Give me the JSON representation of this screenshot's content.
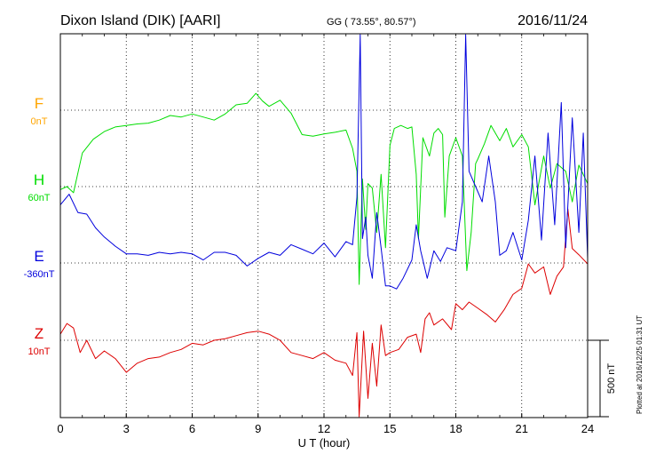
{
  "header": {
    "station": "Dixon Island (DIK)  [AARI]",
    "coords": "GG ( 73.55°,  80.57°)",
    "date": "2016/11/24"
  },
  "footer": {
    "plotted": "Plotted at 2016/12/25 01:31  UT"
  },
  "chart_data": {
    "type": "line",
    "xlabel": "U T (hour)",
    "xlim": [
      0,
      24
    ],
    "x_ticks": [
      "0",
      "3",
      "6",
      "9",
      "12",
      "15",
      "18",
      "21",
      "24"
    ],
    "scale_bar": "500 nT",
    "grid": true,
    "series": [
      {
        "name": "F",
        "baseline": "0nT",
        "color": "#ffa500",
        "x": [],
        "values": []
      },
      {
        "name": "H",
        "baseline": "60nT",
        "color": "#00dd00",
        "x": [
          0,
          0.3,
          0.6,
          1.0,
          1.5,
          2.0,
          2.5,
          3.0,
          3.5,
          4.0,
          4.5,
          5.0,
          5.5,
          6.0,
          6.5,
          7.0,
          7.5,
          8.0,
          8.5,
          8.9,
          9.2,
          9.5,
          10.0,
          10.5,
          11.0,
          11.5,
          12.0,
          12.5,
          13.0,
          13.3,
          13.5,
          13.6,
          13.75,
          13.9,
          14.0,
          14.2,
          14.4,
          14.6,
          14.8,
          15.0,
          15.2,
          15.5,
          15.8,
          16.0,
          16.2,
          16.3,
          16.5,
          16.8,
          17.0,
          17.2,
          17.4,
          17.5,
          17.7,
          18.0,
          18.3,
          18.5,
          18.7,
          18.9,
          19.0,
          19.3,
          19.6,
          20.0,
          20.3,
          20.6,
          21.0,
          21.3,
          21.6,
          22.0,
          22.3,
          22.6,
          23.0,
          23.3,
          23.6,
          24.0
        ],
        "values": [
          -20,
          0,
          -40,
          220,
          310,
          360,
          390,
          400,
          410,
          415,
          435,
          465,
          455,
          475,
          455,
          435,
          475,
          535,
          545,
          610,
          560,
          525,
          565,
          480,
          340,
          330,
          345,
          355,
          370,
          250,
          100,
          -640,
          50,
          -280,
          20,
          -10,
          -300,
          80,
          -400,
          270,
          380,
          400,
          380,
          390,
          80,
          -340,
          320,
          200,
          350,
          380,
          340,
          -200,
          200,
          320,
          200,
          -550,
          -300,
          150,
          180,
          280,
          400,
          300,
          380,
          260,
          340,
          260,
          -120,
          200,
          -10,
          150,
          100,
          -100,
          140,
          20
        ]
      },
      {
        "name": "E",
        "baseline": "-360nT",
        "color": "#0000dd",
        "x": [
          0,
          0.4,
          0.8,
          1.2,
          1.6,
          2.0,
          2.5,
          3.0,
          3.5,
          4.0,
          4.5,
          5.0,
          5.5,
          6.0,
          6.5,
          7.0,
          7.5,
          8.0,
          8.5,
          9.0,
          9.5,
          10.0,
          10.5,
          11.0,
          11.5,
          12.0,
          12.5,
          13.0,
          13.3,
          13.5,
          13.65,
          13.75,
          13.9,
          14.0,
          14.2,
          14.4,
          14.6,
          14.8,
          15.0,
          15.3,
          15.6,
          16.0,
          16.2,
          16.4,
          16.7,
          17.0,
          17.3,
          17.6,
          18.0,
          18.3,
          18.45,
          18.6,
          18.9,
          19.2,
          19.5,
          19.8,
          20.0,
          20.3,
          20.6,
          21.0,
          21.3,
          21.6,
          21.9,
          22.2,
          22.5,
          22.8,
          23.0,
          23.3,
          23.6,
          23.8,
          24.0
        ],
        "values": [
          380,
          450,
          330,
          320,
          230,
          170,
          110,
          60,
          60,
          50,
          70,
          60,
          70,
          60,
          20,
          70,
          70,
          50,
          -20,
          30,
          70,
          50,
          120,
          90,
          60,
          130,
          40,
          140,
          120,
          430,
          1600,
          160,
          300,
          50,
          -100,
          330,
          100,
          -150,
          -150,
          -170,
          -100,
          20,
          250,
          80,
          -100,
          80,
          10,
          100,
          80,
          400,
          1550,
          600,
          500,
          400,
          700,
          400,
          50,
          80,
          200,
          20,
          280,
          700,
          150,
          850,
          250,
          1050,
          100,
          950,
          200,
          850,
          30
        ]
      },
      {
        "name": "Z",
        "baseline": "10nT",
        "color": "#dd0000",
        "x": [
          0,
          0.3,
          0.6,
          0.9,
          1.2,
          1.6,
          2.0,
          2.5,
          3.0,
          3.5,
          4.0,
          4.5,
          5.0,
          5.5,
          6.0,
          6.5,
          7.0,
          7.5,
          8.0,
          8.5,
          9.0,
          9.5,
          10.0,
          10.5,
          11.0,
          11.5,
          12.0,
          12.5,
          13.0,
          13.3,
          13.5,
          13.6,
          13.8,
          14.0,
          14.2,
          14.4,
          14.6,
          14.8,
          15.0,
          15.4,
          15.8,
          16.2,
          16.4,
          16.6,
          16.8,
          17.0,
          17.4,
          17.8,
          18.0,
          18.3,
          18.6,
          19.0,
          19.4,
          19.8,
          20.2,
          20.6,
          21.0,
          21.3,
          21.6,
          22.0,
          22.3,
          22.6,
          22.9,
          23.1,
          23.3,
          23.6,
          24.0
        ],
        "values": [
          40,
          110,
          80,
          -80,
          0,
          -120,
          -70,
          -120,
          -210,
          -150,
          -120,
          -110,
          -80,
          -60,
          -20,
          -30,
          0,
          10,
          30,
          50,
          60,
          40,
          0,
          -80,
          -100,
          -120,
          -80,
          -130,
          -150,
          -230,
          50,
          -600,
          60,
          -380,
          -20,
          -300,
          100,
          -100,
          -80,
          -60,
          20,
          40,
          -80,
          140,
          180,
          100,
          140,
          70,
          240,
          200,
          250,
          210,
          170,
          120,
          200,
          300,
          340,
          500,
          440,
          480,
          300,
          420,
          480,
          860,
          600,
          560,
          500
        ]
      }
    ]
  }
}
